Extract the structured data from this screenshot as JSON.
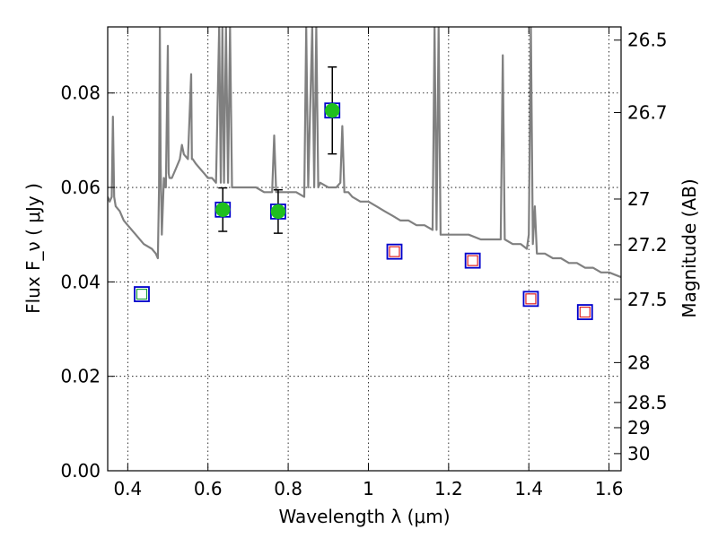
{
  "chart_data": {
    "type": "scatter",
    "xlabel": "Wavelength  λ (μm)",
    "ylabel": "Flux  F_ν  ( μJy )",
    "ylabel_right": "Magnitude (AB)",
    "xlim": [
      0.35,
      1.63
    ],
    "ylim": [
      0.0,
      0.094
    ],
    "grid": true,
    "x_ticks": [
      {
        "value": 0.4,
        "label": "0.4"
      },
      {
        "value": 0.6,
        "label": "0.6"
      },
      {
        "value": 0.8,
        "label": "0.8"
      },
      {
        "value": 1.0,
        "label": "1"
      },
      {
        "value": 1.2,
        "label": "1.2"
      },
      {
        "value": 1.4,
        "label": "1.4"
      },
      {
        "value": 1.6,
        "label": "1.6"
      }
    ],
    "y_ticks": [
      {
        "value": 0.0,
        "label": "0.00"
      },
      {
        "value": 0.02,
        "label": "0.02"
      },
      {
        "value": 0.04,
        "label": "0.04"
      },
      {
        "value": 0.06,
        "label": "0.06"
      },
      {
        "value": 0.08,
        "label": "0.08"
      }
    ],
    "y2_ticks": [
      {
        "value": 26.5,
        "label": "26.5"
      },
      {
        "value": 26.7,
        "label": "26.7"
      },
      {
        "value": 27,
        "label": "27"
      },
      {
        "value": 27.2,
        "label": "27.2"
      },
      {
        "value": 27.5,
        "label": "27.5"
      },
      {
        "value": 28,
        "label": "28"
      },
      {
        "value": 28.5,
        "label": "28.5"
      },
      {
        "value": 29,
        "label": "29"
      },
      {
        "value": 30,
        "label": "30"
      }
    ],
    "colors": {
      "spectrum": "#808080",
      "observed_fill": "#1fbf1f",
      "box": "#0000cc",
      "model_marker": "#dd2222",
      "green_square": "#1e9e3e",
      "errorbar": "#000000"
    },
    "series": [
      {
        "kind": "observed",
        "points": [
          {
            "x": 0.637,
            "y": 0.0553,
            "yerr": 0.0046
          },
          {
            "x": 0.775,
            "y": 0.0549,
            "yerr": 0.0046
          },
          {
            "x": 0.91,
            "y": 0.0763,
            "yerr": 0.0092
          }
        ]
      },
      {
        "kind": "model_box",
        "points": [
          {
            "x": 0.435,
            "y": 0.0374
          },
          {
            "x": 0.637,
            "y": 0.0553
          },
          {
            "x": 0.775,
            "y": 0.0549
          },
          {
            "x": 0.91,
            "y": 0.0763
          },
          {
            "x": 1.065,
            "y": 0.0464
          },
          {
            "x": 1.26,
            "y": 0.0445
          },
          {
            "x": 1.405,
            "y": 0.0364
          },
          {
            "x": 1.54,
            "y": 0.0336
          }
        ]
      },
      {
        "kind": "model_inner_red",
        "points": [
          {
            "x": 1.065,
            "y": 0.0464
          },
          {
            "x": 1.26,
            "y": 0.0445
          },
          {
            "x": 1.405,
            "y": 0.0364
          },
          {
            "x": 1.54,
            "y": 0.0336
          }
        ]
      },
      {
        "kind": "model_inner_green",
        "points": [
          {
            "x": 0.435,
            "y": 0.0374
          }
        ]
      },
      {
        "kind": "spectrum",
        "x": [
          0.35,
          0.355,
          0.36,
          0.363,
          0.366,
          0.37,
          0.38,
          0.39,
          0.4,
          0.42,
          0.44,
          0.46,
          0.47,
          0.475,
          0.478,
          0.48,
          0.482,
          0.485,
          0.49,
          0.495,
          0.5,
          0.502,
          0.504,
          0.51,
          0.52,
          0.53,
          0.535,
          0.54,
          0.55,
          0.558,
          0.56,
          0.562,
          0.57,
          0.58,
          0.59,
          0.6,
          0.61,
          0.62,
          0.628,
          0.632,
          0.636,
          0.64,
          0.645,
          0.65,
          0.655,
          0.66,
          0.67,
          0.68,
          0.69,
          0.7,
          0.72,
          0.74,
          0.76,
          0.765,
          0.77,
          0.78,
          0.8,
          0.82,
          0.84,
          0.845,
          0.85,
          0.86,
          0.865,
          0.87,
          0.875,
          0.88,
          0.9,
          0.92,
          0.93,
          0.935,
          0.94,
          0.95,
          0.96,
          0.98,
          1.0,
          1.02,
          1.04,
          1.06,
          1.08,
          1.1,
          1.12,
          1.14,
          1.16,
          1.165,
          1.17,
          1.175,
          1.18,
          1.2,
          1.22,
          1.25,
          1.28,
          1.3,
          1.32,
          1.33,
          1.335,
          1.34,
          1.36,
          1.38,
          1.395,
          1.4,
          1.405,
          1.41,
          1.415,
          1.42,
          1.44,
          1.46,
          1.48,
          1.5,
          1.52,
          1.54,
          1.56,
          1.58,
          1.6,
          1.63
        ],
        "y": [
          0.058,
          0.057,
          0.058,
          0.075,
          0.058,
          0.056,
          0.055,
          0.053,
          0.052,
          0.05,
          0.048,
          0.047,
          0.046,
          0.045,
          0.06,
          0.094,
          0.065,
          0.05,
          0.062,
          0.06,
          0.09,
          0.063,
          0.062,
          0.062,
          0.064,
          0.066,
          0.069,
          0.067,
          0.066,
          0.084,
          0.066,
          0.066,
          0.065,
          0.064,
          0.063,
          0.062,
          0.062,
          0.061,
          0.094,
          0.061,
          0.094,
          0.061,
          0.094,
          0.061,
          0.094,
          0.06,
          0.06,
          0.06,
          0.06,
          0.06,
          0.06,
          0.059,
          0.059,
          0.071,
          0.059,
          0.059,
          0.059,
          0.059,
          0.058,
          0.094,
          0.06,
          0.094,
          0.06,
          0.094,
          0.06,
          0.061,
          0.06,
          0.06,
          0.061,
          0.073,
          0.059,
          0.059,
          0.058,
          0.057,
          0.057,
          0.056,
          0.055,
          0.054,
          0.053,
          0.053,
          0.052,
          0.052,
          0.051,
          0.094,
          0.051,
          0.094,
          0.05,
          0.05,
          0.05,
          0.05,
          0.049,
          0.049,
          0.049,
          0.049,
          0.088,
          0.049,
          0.048,
          0.048,
          0.047,
          0.05,
          0.094,
          0.048,
          0.056,
          0.046,
          0.046,
          0.045,
          0.045,
          0.044,
          0.044,
          0.043,
          0.043,
          0.042,
          0.042,
          0.041
        ]
      }
    ]
  }
}
